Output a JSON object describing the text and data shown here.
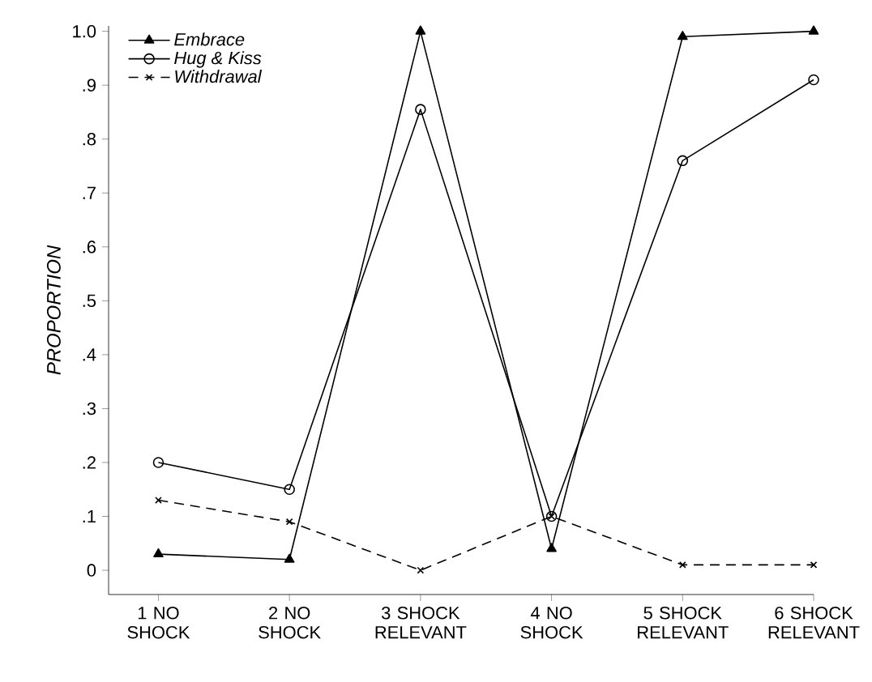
{
  "chart_data": {
    "type": "line",
    "ylabel": "PROPORTION",
    "categories": [
      "1 NO SHOCK",
      "2 NO SHOCK",
      "3 SHOCK RELEVANT",
      "4 NO SHOCK",
      "5 SHOCK RELEVANT",
      "6 SHOCK RELEVANT"
    ],
    "series": [
      {
        "name": "Embrace",
        "color": "#000000",
        "marker": "triangle",
        "line_style": "solid",
        "values": [
          0.03,
          0.02,
          1.0,
          0.04,
          0.99,
          1.0
        ]
      },
      {
        "name": "Hug & Kiss",
        "color": "#000000",
        "marker": "circle",
        "line_style": "solid",
        "values": [
          0.2,
          0.15,
          0.855,
          0.1,
          0.76,
          0.91
        ]
      },
      {
        "name": "Withdrawal",
        "color": "#000000",
        "marker": "cross",
        "line_style": "dashed",
        "values": [
          0.13,
          0.09,
          0.0,
          0.1,
          0.01,
          0.01
        ]
      }
    ],
    "ylim": [
      -0.045,
      1.01
    ],
    "yticks": [
      0,
      {
        "value": 0.1,
        "label": ".1"
      },
      {
        "value": 0.2,
        "label": ".2"
      },
      {
        "value": 0.3,
        "label": ".3"
      },
      {
        "value": 0.4,
        "label": ".4"
      },
      {
        "value": 0.5,
        "label": ".5"
      },
      {
        "value": 0.6,
        "label": ".6"
      },
      {
        "value": 0.7,
        "label": ".7"
      },
      {
        "value": 0.8,
        "label": ".8"
      },
      {
        "value": 0.9,
        "label": ".9"
      },
      {
        "value": 1.0,
        "label": "1.0"
      }
    ],
    "grid": false,
    "legend": "top left"
  }
}
